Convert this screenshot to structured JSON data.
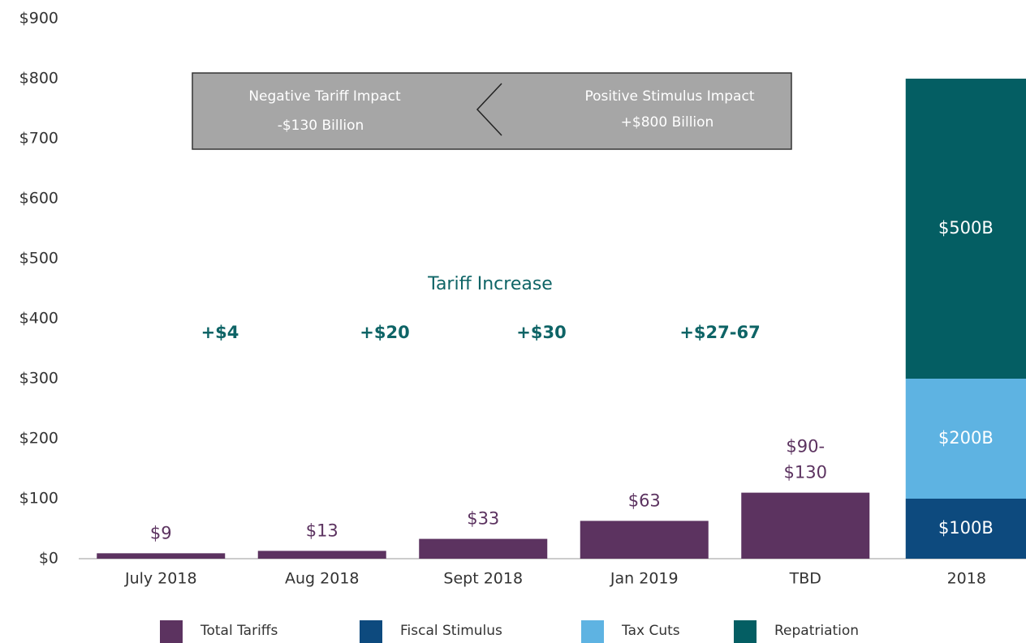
{
  "chart_data": {
    "type": "bar",
    "categories": [
      "July 2018",
      "Aug 2018",
      "Sept 2018",
      "Jan 2019",
      "TBD",
      "2018"
    ],
    "series": [
      {
        "name": "Total Tariffs",
        "color": "#5c3360",
        "values": [
          9,
          13,
          33,
          63,
          110,
          null
        ],
        "value_labels": [
          "$9",
          "$13",
          "$33",
          "$63",
          "$90-\n$130",
          null
        ]
      },
      {
        "name": "Fiscal Stimulus",
        "color": "#0d4a7e",
        "values": [
          null,
          null,
          null,
          null,
          null,
          100
        ],
        "value_labels": [
          null,
          null,
          null,
          null,
          null,
          "$100B"
        ]
      },
      {
        "name": "Tax Cuts",
        "color": "#5eb3e2",
        "values": [
          null,
          null,
          null,
          null,
          null,
          200
        ],
        "value_labels": [
          null,
          null,
          null,
          null,
          null,
          "$200B"
        ]
      },
      {
        "name": "Repatriation",
        "color": "#045e63",
        "values": [
          null,
          null,
          null,
          null,
          null,
          500
        ],
        "value_labels": [
          null,
          null,
          null,
          null,
          null,
          "$500B"
        ]
      }
    ],
    "stacked": true,
    "ylim": [
      0,
      900
    ],
    "yticks": [
      {
        "value": 0,
        "label": "$0"
      },
      {
        "value": 100,
        "label": "$100"
      },
      {
        "value": 200,
        "label": "$200"
      },
      {
        "value": 300,
        "label": "$300"
      },
      {
        "value": 400,
        "label": "$400"
      },
      {
        "value": 500,
        "label": "$500"
      },
      {
        "value": 600,
        "label": "$600"
      },
      {
        "value": 700,
        "label": "$700"
      },
      {
        "value": 800,
        "label": "$800"
      },
      {
        "value": 900,
        "label": "$900"
      }
    ],
    "annotations": {
      "impact_box": {
        "left_title": "Negative Tariff Impact",
        "left_value": "-$130 Billion",
        "right_title": "Positive Stimulus Impact",
        "right_value": "+$800 Billion"
      },
      "increase_title": "Tariff Increase",
      "increases": [
        "+$4",
        "+$20",
        "+$30",
        "+$27-67"
      ]
    }
  }
}
